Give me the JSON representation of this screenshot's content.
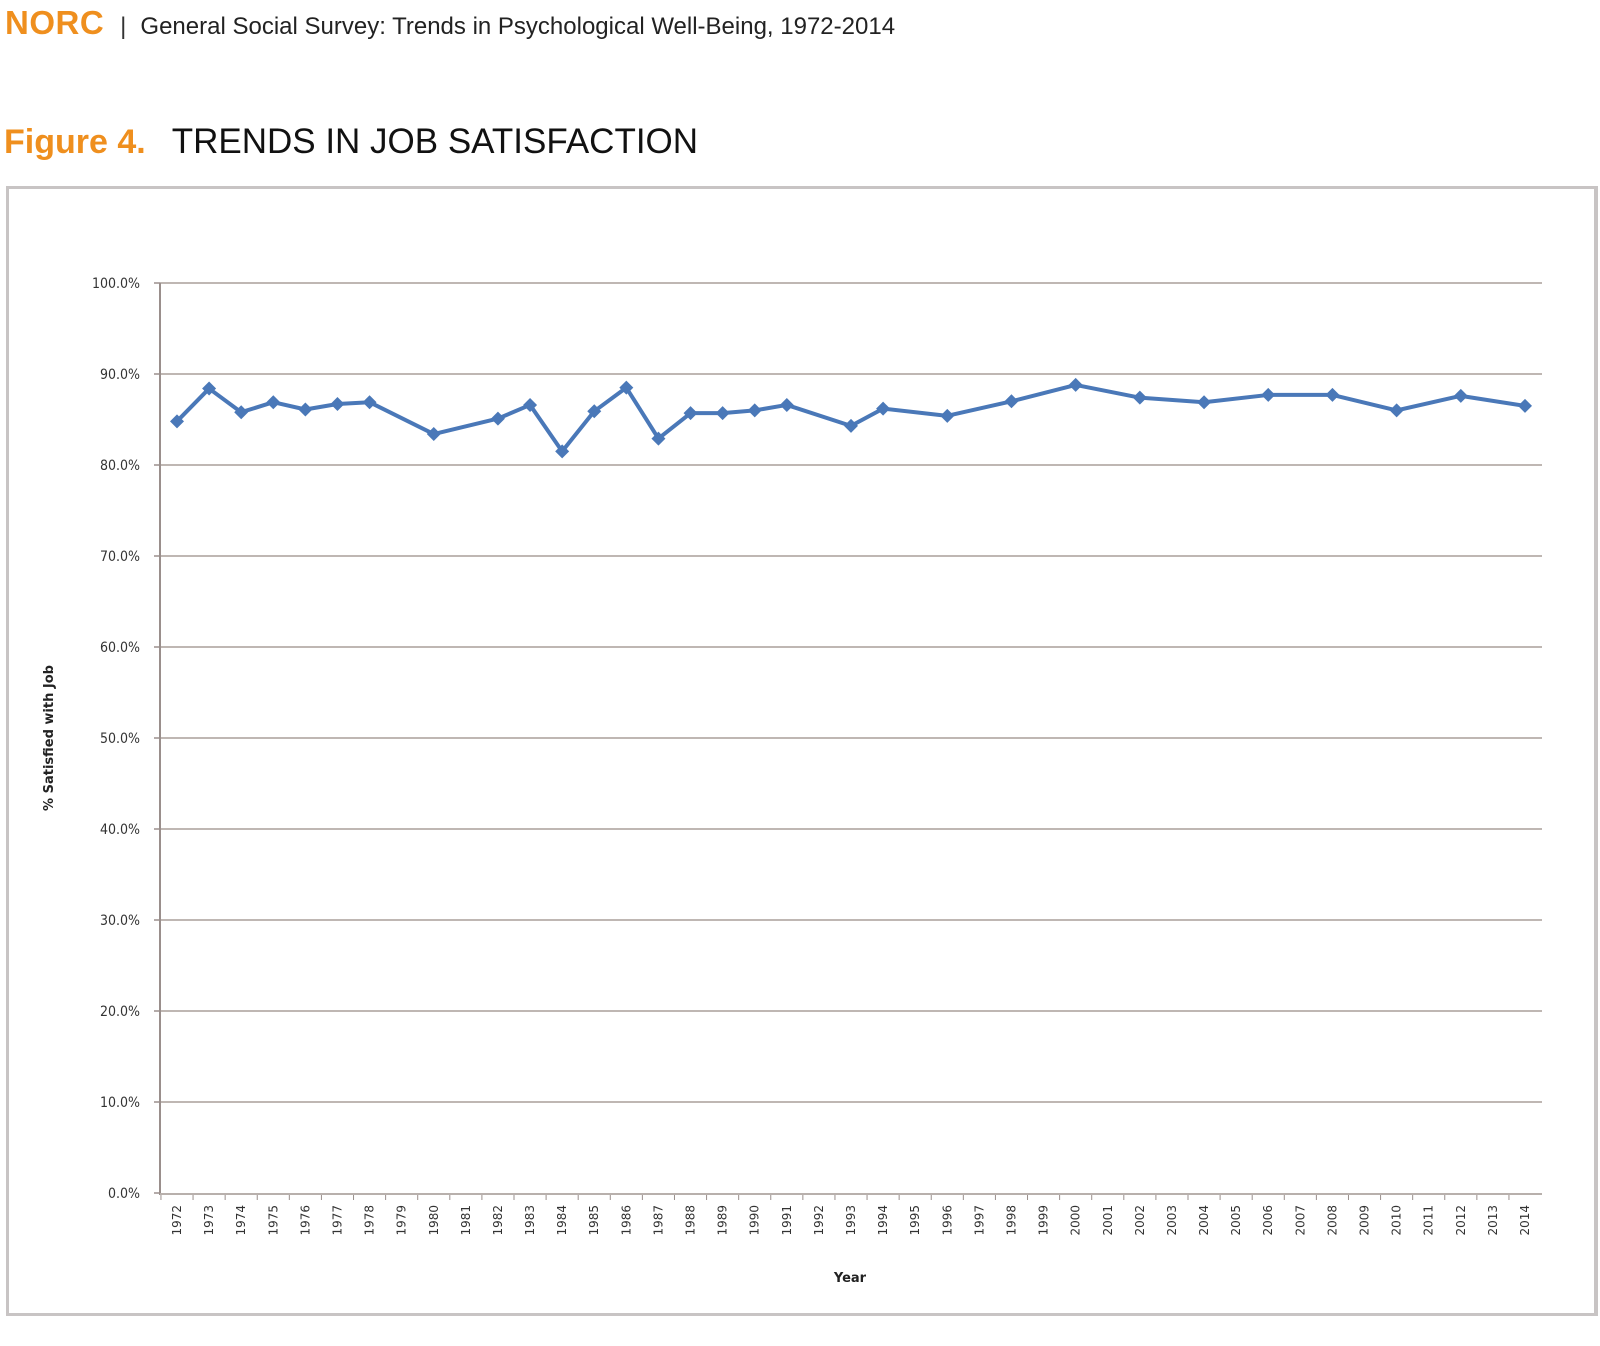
{
  "header": {
    "brand": "NORC",
    "separator": "|",
    "subtitle": "General Social Survey: Trends in Psychological Well-Being, 1972-2014"
  },
  "figure": {
    "number": "Figure 4.",
    "title": "TRENDS IN JOB SATISFACTION"
  },
  "colors": {
    "brand_orange": "#ef8f1e",
    "series_blue": "#4a78b8",
    "grid": "#bfb7b3"
  },
  "chart_data": {
    "type": "line",
    "title": "TRENDS IN JOB SATISFACTION",
    "xlabel": "Year",
    "ylabel": "% Satisfied with Job",
    "ylim": [
      0,
      100
    ],
    "yticks": [
      "0.0%",
      "10.0%",
      "20.0%",
      "30.0%",
      "40.0%",
      "50.0%",
      "60.0%",
      "70.0%",
      "80.0%",
      "90.0%",
      "100.0%"
    ],
    "grid": true,
    "legend": null,
    "categories": [
      "1972",
      "1973",
      "1974",
      "1975",
      "1976",
      "1977",
      "1978",
      "1979",
      "1980",
      "1981",
      "1982",
      "1983",
      "1984",
      "1985",
      "1986",
      "1987",
      "1988",
      "1989",
      "1990",
      "1991",
      "1992",
      "1993",
      "1994",
      "1995",
      "1996",
      "1997",
      "1998",
      "1999",
      "2000",
      "2001",
      "2002",
      "2003",
      "2004",
      "2005",
      "2006",
      "2007",
      "2008",
      "2009",
      "2010",
      "2011",
      "2012",
      "2013",
      "2014"
    ],
    "series": [
      {
        "name": "% Satisfied with Job",
        "x": [
          "1972",
          "1973",
          "1974",
          "1975",
          "1976",
          "1977",
          "1978",
          "1980",
          "1982",
          "1983",
          "1984",
          "1985",
          "1986",
          "1987",
          "1988",
          "1989",
          "1990",
          "1991",
          "1993",
          "1994",
          "1996",
          "1998",
          "2000",
          "2002",
          "2004",
          "2006",
          "2008",
          "2010",
          "2012",
          "2014"
        ],
        "values": [
          84.8,
          88.4,
          85.8,
          86.9,
          86.1,
          86.7,
          86.9,
          83.4,
          85.1,
          86.6,
          81.5,
          85.9,
          88.5,
          82.9,
          85.7,
          85.7,
          86.0,
          86.6,
          84.3,
          86.2,
          85.4,
          87.0,
          88.8,
          87.4,
          86.9,
          87.7,
          87.7,
          86.0,
          87.6,
          86.5
        ]
      }
    ]
  }
}
